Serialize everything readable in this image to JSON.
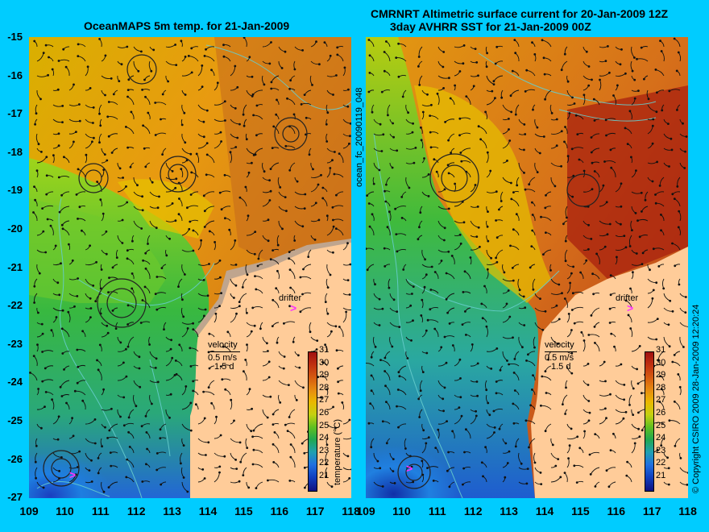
{
  "left_title": "OceanMAPS 5m temp. for 21-Jan-2009",
  "right_title_line1": "CMRNRT Altimetric surface current for 20-Jan-2009 12Z",
  "right_title_line2": "3day AVHRR SST for 21-Jan-2009 00Z",
  "side_label_left": "ocean_fc_20090119_048",
  "side_label_right": "© Copyright CSIRO 2009   28-Jan-2009 12:20:24",
  "y_ticks": [
    "-15",
    "-16",
    "-17",
    "-18",
    "-19",
    "-20",
    "-21",
    "-22",
    "-23",
    "-24",
    "-25",
    "-26",
    "-27"
  ],
  "x_ticks": [
    "109",
    "110",
    "111",
    "112",
    "113",
    "114",
    "115",
    "116",
    "117",
    "118"
  ],
  "legend": {
    "velocity": "velocity",
    "speed": "0.5 m/s",
    "duration": "1.5 d",
    "drifter": "drifter",
    "drifter_marker": ">",
    "colorbar_label": "temperature (°C)",
    "colorbar_ticks": [
      "31",
      "30",
      "29",
      "28",
      "27",
      "26",
      "25",
      "24",
      "23",
      "22",
      "21"
    ]
  },
  "colors": {
    "background": "#00ccff",
    "land": "#ffcc99",
    "shelf": "#bfa58e",
    "drifter": "#ff33ff",
    "bathymetry_contour": "#66cccc"
  }
}
